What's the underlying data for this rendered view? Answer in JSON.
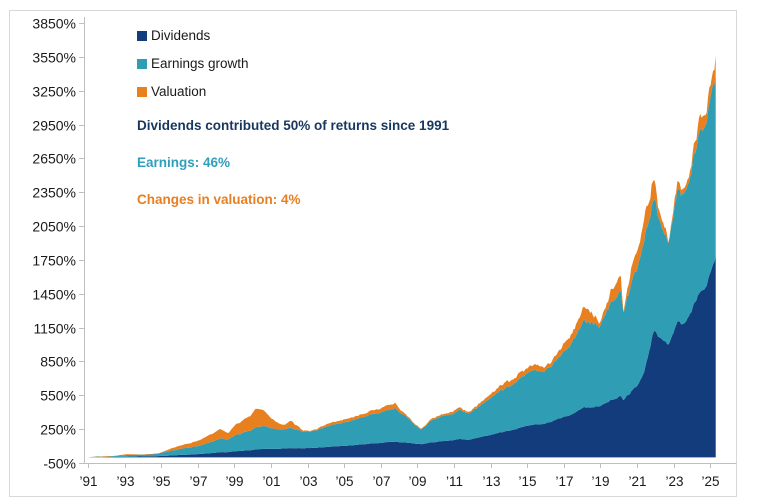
{
  "canvas": {
    "background": "#FFFFFF",
    "frame_border_color": "#D8D8D8",
    "axis_line_color": "#BFBFBF"
  },
  "chart_data": {
    "type": "area",
    "stacked": true,
    "title": "",
    "units": "%",
    "ylabel": "",
    "xlabel": "",
    "grid": false,
    "legend_position": "top-left-inside",
    "y_axis": {
      "min": -50,
      "max": 3850,
      "step": 300,
      "tick_labels": [
        "3850%",
        "3550%",
        "3250%",
        "2950%",
        "2650%",
        "2350%",
        "2050%",
        "1750%",
        "1450%",
        "1150%",
        "850%",
        "550%",
        "250%",
        "-50%"
      ],
      "tick_values": [
        3850,
        3550,
        3250,
        2950,
        2650,
        2350,
        2050,
        1750,
        1450,
        1150,
        850,
        550,
        250,
        -50
      ]
    },
    "x_axis": {
      "tick_labels": [
        "’91",
        "’93",
        "’95",
        "’97",
        "’99",
        "’01",
        "’03",
        "’05",
        "’07",
        "’09",
        "’11",
        "’13",
        "’15",
        "’17",
        "’19",
        "’21",
        "’23",
        "’25"
      ],
      "tick_years": [
        1991,
        1993,
        1995,
        1997,
        1999,
        2001,
        2003,
        2005,
        2007,
        2009,
        2011,
        2013,
        2015,
        2017,
        2019,
        2021,
        2023,
        2025
      ]
    },
    "legend": [
      {
        "label": "Dividends",
        "color": "#123C7C"
      },
      {
        "label": "Earnings growth",
        "color": "#2F9EB5"
      },
      {
        "label": "Valuation",
        "color": "#E8801F"
      }
    ],
    "annotations": [
      {
        "text": "Dividends contributed 50% of returns since 1991",
        "color": "#17375E"
      },
      {
        "text": "Earnings: 46%",
        "color": "#2F9FBC"
      },
      {
        "text": "Changes in valuation: 4%",
        "color": "#E87F22"
      }
    ],
    "stats": {
      "dividends_contribution": "50%",
      "earnings_contribution": "46%",
      "valuation_contribution": "4%",
      "since_year": "1991"
    },
    "series_names": [
      "Dividends",
      "Earnings growth",
      "Valuation"
    ],
    "anchors_note": "cumulative contribution in %, stacked layers (dividends bottom, earnings middle, valuation top), read from plot",
    "anchors": [
      {
        "year": 1991.0,
        "dividends": 0,
        "earnings": 0,
        "valuation": 0
      },
      {
        "year": 1991.5,
        "dividends": 2,
        "earnings": 5,
        "valuation": 3
      },
      {
        "year": 1992.0,
        "dividends": 3,
        "earnings": 6,
        "valuation": -10
      },
      {
        "year": 1992.4,
        "dividends": 4,
        "earnings": 8,
        "valuation": 0
      },
      {
        "year": 1993.0,
        "dividends": 6,
        "earnings": 14,
        "valuation": 6
      },
      {
        "year": 1993.6,
        "dividends": 7,
        "earnings": 16,
        "valuation": 6
      },
      {
        "year": 1994.2,
        "dividends": 9,
        "earnings": 18,
        "valuation": -6
      },
      {
        "year": 1994.8,
        "dividends": 11,
        "earnings": 22,
        "valuation": -2
      },
      {
        "year": 1995.5,
        "dividends": 16,
        "earnings": 40,
        "valuation": 18
      },
      {
        "year": 1996.0,
        "dividends": 21,
        "earnings": 52,
        "valuation": 28
      },
      {
        "year": 1996.6,
        "dividends": 25,
        "earnings": 62,
        "valuation": 37
      },
      {
        "year": 1997.2,
        "dividends": 31,
        "earnings": 78,
        "valuation": 50
      },
      {
        "year": 1997.7,
        "dividends": 37,
        "earnings": 97,
        "valuation": 66
      },
      {
        "year": 1998.2,
        "dividends": 45,
        "earnings": 118,
        "valuation": 82
      },
      {
        "year": 1998.7,
        "dividends": 48,
        "earnings": 115,
        "valuation": 55
      },
      {
        "year": 1999.1,
        "dividends": 56,
        "earnings": 148,
        "valuation": 101
      },
      {
        "year": 1999.6,
        "dividends": 61,
        "earnings": 168,
        "valuation": 121
      },
      {
        "year": 2000.2,
        "dividends": 70,
        "earnings": 196,
        "valuation": 164
      },
      {
        "year": 2000.7,
        "dividends": 74,
        "earnings": 194,
        "valuation": 120
      },
      {
        "year": 2001.2,
        "dividends": 77,
        "earnings": 181,
        "valuation": 70
      },
      {
        "year": 2001.75,
        "dividends": 78,
        "earnings": 168,
        "valuation": 34
      },
      {
        "year": 2002.1,
        "dividends": 80,
        "earnings": 176,
        "valuation": 62
      },
      {
        "year": 2002.75,
        "dividends": 80,
        "earnings": 146,
        "valuation": 9
      },
      {
        "year": 2003.2,
        "dividends": 82,
        "earnings": 146,
        "valuation": 7
      },
      {
        "year": 2003.7,
        "dividends": 87,
        "earnings": 163,
        "valuation": 15
      },
      {
        "year": 2004.2,
        "dividends": 94,
        "earnings": 186,
        "valuation": 22
      },
      {
        "year": 2005.0,
        "dividends": 104,
        "earnings": 214,
        "valuation": 26
      },
      {
        "year": 2006.0,
        "dividends": 117,
        "earnings": 244,
        "valuation": 29
      },
      {
        "year": 2007.0,
        "dividends": 130,
        "earnings": 272,
        "valuation": 38
      },
      {
        "year": 2007.8,
        "dividends": 138,
        "earnings": 292,
        "valuation": 45
      },
      {
        "year": 2008.3,
        "dividends": 132,
        "earnings": 238,
        "valuation": 18
      },
      {
        "year": 2008.9,
        "dividends": 123,
        "earnings": 162,
        "valuation": 10
      },
      {
        "year": 2009.2,
        "dividends": 120,
        "earnings": 138,
        "valuation": 7
      },
      {
        "year": 2009.8,
        "dividends": 134,
        "earnings": 198,
        "valuation": 15
      },
      {
        "year": 2010.4,
        "dividends": 143,
        "earnings": 220,
        "valuation": 14
      },
      {
        "year": 2010.9,
        "dividends": 152,
        "earnings": 238,
        "valuation": 20
      },
      {
        "year": 2011.35,
        "dividends": 165,
        "earnings": 261,
        "valuation": 23
      },
      {
        "year": 2011.8,
        "dividends": 157,
        "earnings": 234,
        "valuation": 12
      },
      {
        "year": 2012.3,
        "dividends": 175,
        "earnings": 268,
        "valuation": 20
      },
      {
        "year": 2013.0,
        "dividends": 200,
        "earnings": 330,
        "valuation": 35
      },
      {
        "year": 2013.8,
        "dividends": 230,
        "earnings": 382,
        "valuation": 44
      },
      {
        "year": 2014.5,
        "dividends": 258,
        "earnings": 430,
        "valuation": 52
      },
      {
        "year": 2015.3,
        "dividends": 294,
        "earnings": 490,
        "valuation": 56
      },
      {
        "year": 2015.85,
        "dividends": 299,
        "earnings": 478,
        "valuation": 40
      },
      {
        "year": 2016.2,
        "dividends": 312,
        "earnings": 492,
        "valuation": 36
      },
      {
        "year": 2016.8,
        "dividends": 345,
        "earnings": 545,
        "valuation": 55
      },
      {
        "year": 2017.5,
        "dividends": 390,
        "earnings": 645,
        "valuation": 90
      },
      {
        "year": 2018.1,
        "dividends": 440,
        "earnings": 758,
        "valuation": 120
      },
      {
        "year": 2018.6,
        "dividends": 450,
        "earnings": 748,
        "valuation": 88
      },
      {
        "year": 2018.95,
        "dividends": 464,
        "earnings": 724,
        "valuation": 36
      },
      {
        "year": 2019.5,
        "dividends": 505,
        "earnings": 873,
        "valuation": 110
      },
      {
        "year": 2020.1,
        "dividends": 550,
        "earnings": 948,
        "valuation": 156
      },
      {
        "year": 2020.25,
        "dividends": 515,
        "earnings": 782,
        "valuation": 10
      },
      {
        "year": 2020.6,
        "dividends": 560,
        "earnings": 918,
        "valuation": 104
      },
      {
        "year": 2021.0,
        "dividends": 640,
        "earnings": 1058,
        "valuation": 160
      },
      {
        "year": 2021.4,
        "dividends": 740,
        "earnings": 1128,
        "valuation": 180
      },
      {
        "year": 2021.9,
        "dividends": 1128,
        "earnings": 1190,
        "valuation": 160
      },
      {
        "year": 2022.2,
        "dividends": 1078,
        "earnings": 1048,
        "valuation": 90
      },
      {
        "year": 2022.75,
        "dividends": 1008,
        "earnings": 905,
        "valuation": 25
      },
      {
        "year": 2023.2,
        "dividends": 1228,
        "earnings": 1218,
        "valuation": 62
      },
      {
        "year": 2023.6,
        "dividends": 1178,
        "earnings": 1140,
        "valuation": 40
      },
      {
        "year": 2024.0,
        "dividends": 1330,
        "earnings": 1300,
        "valuation": 85
      },
      {
        "year": 2024.4,
        "dividends": 1450,
        "earnings": 1420,
        "valuation": 110
      },
      {
        "year": 2024.8,
        "dividends": 1560,
        "earnings": 1510,
        "valuation": 120
      },
      {
        "year": 2025.05,
        "dividends": 1690,
        "earnings": 1595,
        "valuation": 135
      },
      {
        "year": 2025.3,
        "dividends": 1780,
        "earnings": 1630,
        "valuation": 150
      }
    ]
  }
}
